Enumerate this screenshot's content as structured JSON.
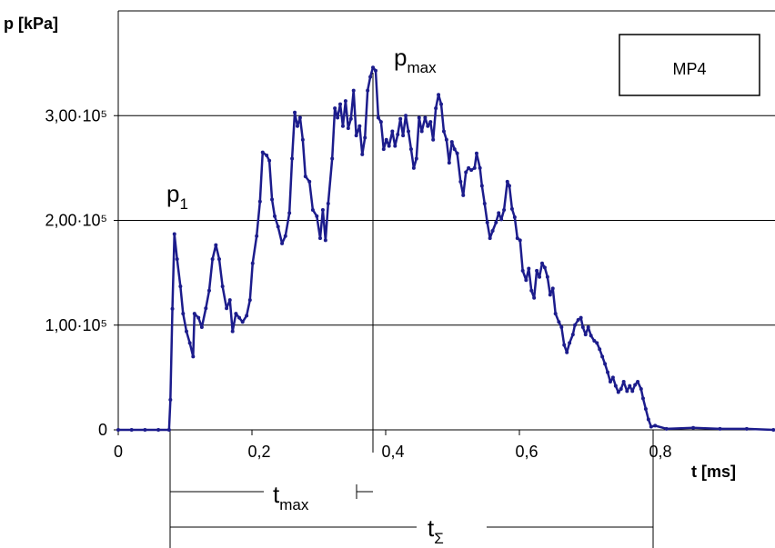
{
  "chart_data": {
    "type": "line",
    "y_label": "p [kPa]",
    "x_label": "t [ms]",
    "box_label": "MP4",
    "annotations": [
      {
        "text": "p",
        "sub": "1"
      },
      {
        "text": "p",
        "sub": "max"
      },
      {
        "text": "t",
        "sub": "max"
      },
      {
        "text": "t",
        "sub": "Σ"
      }
    ],
    "xlim": [
      0,
      0.98
    ],
    "ylim": [
      0,
      400000
    ],
    "xticks": [
      0,
      {
        "value": 0.2,
        "label": "0,2"
      },
      {
        "value": 0.4,
        "label": "0,4"
      },
      {
        "value": 0.6,
        "label": "0,6"
      },
      {
        "value": 0.8,
        "label": "0,8"
      }
    ],
    "yticks": [
      0,
      {
        "value": 100000,
        "label": "1,00·10⁵"
      },
      {
        "value": 200000,
        "label": "2,00·10⁵"
      },
      {
        "value": 300000,
        "label": "3,00·10⁵"
      }
    ],
    "grid": true,
    "x": [
      0,
      0.02,
      0.04,
      0.06,
      0.076,
      0.078,
      0.081,
      0.084,
      0.088,
      0.093,
      0.097,
      0.102,
      0.107,
      0.112,
      0.114,
      0.12,
      0.125,
      0.131,
      0.136,
      0.141,
      0.146,
      0.151,
      0.156,
      0.162,
      0.167,
      0.171,
      0.176,
      0.181,
      0.186,
      0.192,
      0.197,
      0.201,
      0.207,
      0.212,
      0.216,
      0.222,
      0.226,
      0.23,
      0.234,
      0.239,
      0.245,
      0.25,
      0.256,
      0.26,
      0.264,
      0.268,
      0.272,
      0.276,
      0.28,
      0.286,
      0.291,
      0.297,
      0.302,
      0.306,
      0.31,
      0.314,
      0.32,
      0.324,
      0.328,
      0.332,
      0.336,
      0.34,
      0.344,
      0.348,
      0.352,
      0.356,
      0.361,
      0.365,
      0.369,
      0.373,
      0.377,
      0.381,
      0.385,
      0.389,
      0.393,
      0.397,
      0.401,
      0.405,
      0.41,
      0.414,
      0.418,
      0.422,
      0.426,
      0.43,
      0.434,
      0.438,
      0.442,
      0.446,
      0.45,
      0.454,
      0.459,
      0.463,
      0.467,
      0.471,
      0.475,
      0.479,
      0.483,
      0.487,
      0.491,
      0.495,
      0.499,
      0.503,
      0.507,
      0.512,
      0.516,
      0.52,
      0.524,
      0.528,
      0.533,
      0.536,
      0.541,
      0.544,
      0.548,
      0.552,
      0.556,
      0.56,
      0.565,
      0.569,
      0.573,
      0.577,
      0.582,
      0.585,
      0.589,
      0.593,
      0.597,
      0.601,
      0.605,
      0.61,
      0.614,
      0.618,
      0.622,
      0.626,
      0.63,
      0.634,
      0.638,
      0.642,
      0.646,
      0.65,
      0.654,
      0.659,
      0.663,
      0.667,
      0.671,
      0.675,
      0.68,
      0.683,
      0.688,
      0.692,
      0.695,
      0.699,
      0.703,
      0.707,
      0.712,
      0.716,
      0.72,
      0.724,
      0.728,
      0.732,
      0.736,
      0.74,
      0.744,
      0.748,
      0.752,
      0.756,
      0.761,
      0.765,
      0.769,
      0.773,
      0.777,
      0.782,
      0.785,
      0.789,
      0.793,
      0.797,
      0.803,
      0.82,
      0.86,
      0.9,
      0.94,
      0.98
    ],
    "series": [
      {
        "color": "#1c1c8c",
        "values": [
          0,
          0,
          0,
          0,
          0,
          28700,
          115600,
          187000,
          163000,
          137000,
          111000,
          94000,
          83000,
          70000,
          111000,
          107000,
          98000,
          116000,
          133000,
          163000,
          176500,
          163000,
          137000,
          116000,
          124000,
          94000,
          111000,
          107000,
          103000,
          109000,
          124000,
          159000,
          185000,
          218000,
          265000,
          262000,
          257000,
          220000,
          204000,
          194000,
          178000,
          185000,
          207000,
          259000,
          303000,
          290000,
          298000,
          277000,
          242000,
          237000,
          210000,
          204000,
          183000,
          210000,
          181000,
          216000,
          259000,
          307000,
          298000,
          311000,
          290000,
          314000,
          288000,
          297000,
          324000,
          281000,
          290000,
          263000,
          279000,
          324000,
          337000,
          346000,
          343000,
          298000,
          294000,
          268000,
          277000,
          271000,
          285000,
          271000,
          282000,
          297000,
          281000,
          300000,
          285000,
          268000,
          250000,
          259000,
          298000,
          285000,
          298000,
          290000,
          294000,
          277000,
          307000,
          320000,
          311000,
          285000,
          277000,
          255000,
          275000,
          268000,
          264000,
          237000,
          224000,
          246000,
          250000,
          248000,
          250000,
          264000,
          250000,
          233000,
          216000,
          198000,
          183000,
          190000,
          198000,
          207000,
          201000,
          210000,
          237000,
          233000,
          211000,
          203000,
          183000,
          181000,
          152000,
          143000,
          154000,
          133000,
          126000,
          152000,
          146000,
          159000,
          155000,
          146000,
          129000,
          135000,
          111000,
          103000,
          98000,
          81000,
          74000,
          83000,
          91000,
          100000,
          105000,
          107000,
          98000,
          91000,
          98000,
          90000,
          85000,
          83000,
          77000,
          70000,
          63000,
          55000,
          46000,
          50000,
          42000,
          36000,
          39000,
          46000,
          37000,
          42000,
          37000,
          43000,
          46000,
          39000,
          30000,
          20000,
          10000,
          3000,
          4000,
          1000,
          2000,
          1000,
          1000,
          0
        ]
      }
    ]
  }
}
